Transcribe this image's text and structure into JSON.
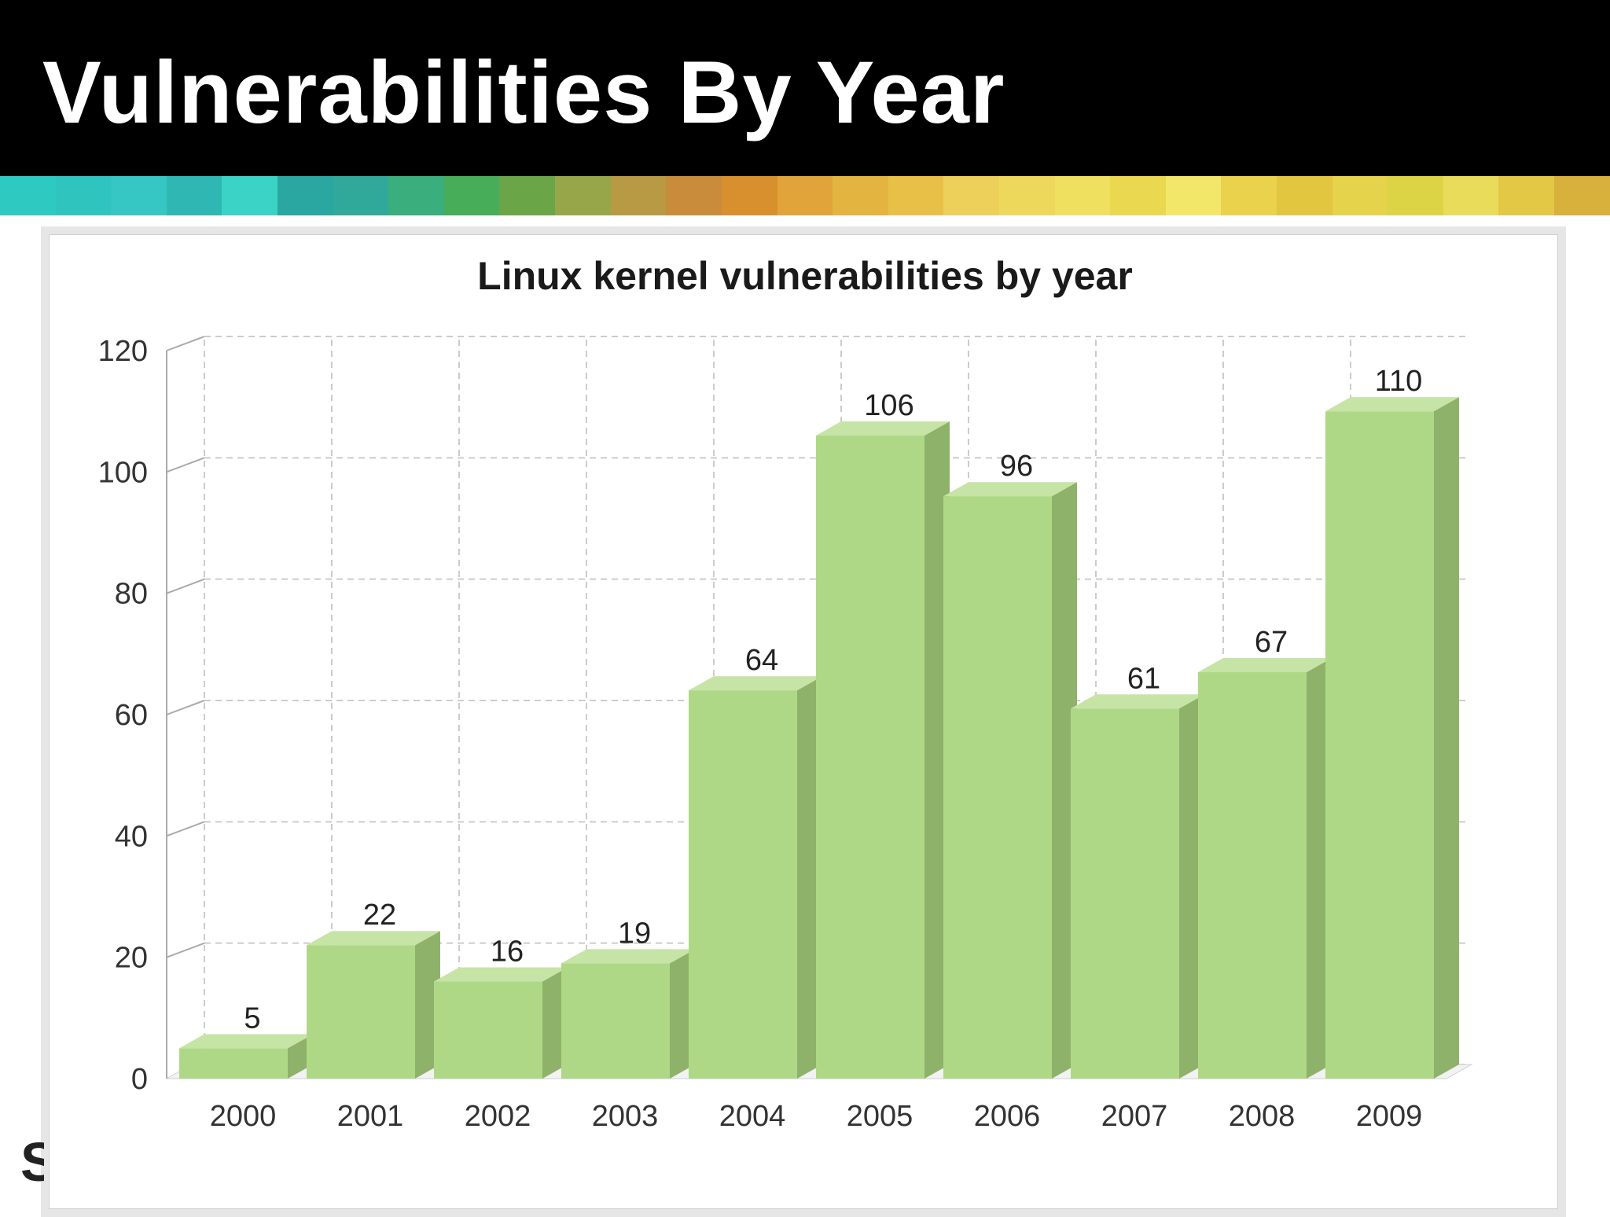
{
  "slide": {
    "title": "Vulnerabilities By Year",
    "header_bg": "#000000"
  },
  "chart_data": {
    "type": "bar",
    "title": "Linux kernel vulnerabilities by year",
    "categories": [
      "2000",
      "2001",
      "2002",
      "2003",
      "2004",
      "2005",
      "2006",
      "2007",
      "2008",
      "2009"
    ],
    "values": [
      5,
      22,
      16,
      19,
      64,
      106,
      96,
      61,
      67,
      110
    ],
    "value_labels": [
      "5",
      "22",
      "16",
      "19",
      "64",
      "106",
      "96",
      "61",
      "67",
      "110"
    ],
    "xlabel": "",
    "ylabel": "",
    "ylim": [
      0,
      120
    ],
    "yticks": [
      "0",
      "20",
      "40",
      "60",
      "80",
      "100",
      "120"
    ],
    "grid": true,
    "style_3d": true,
    "colors": {
      "bar_front": "#afd886",
      "bar_top": "#c6e4a6",
      "bar_side": "#8fb26a",
      "grid": "#cccccc"
    }
  }
}
